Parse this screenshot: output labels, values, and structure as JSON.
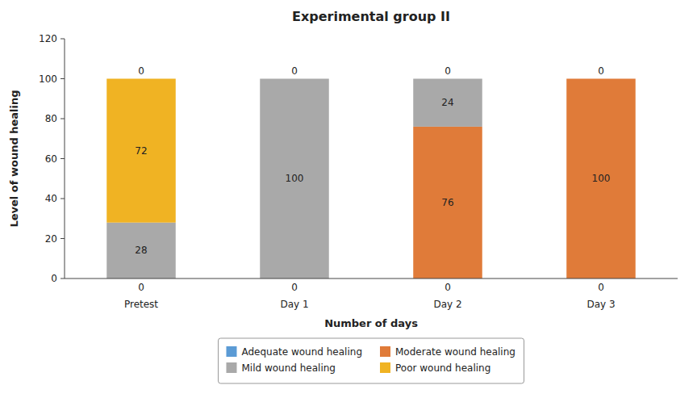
{
  "chart_data": {
    "type": "bar",
    "stacked": true,
    "title": "Experimental group II",
    "x_label": "Number of days",
    "y_label": "Level of wound healing",
    "categories": [
      "Pretest",
      "Day 1",
      "Day 2",
      "Day 3"
    ],
    "series": [
      {
        "name": "Adequate wound healing",
        "color": "#5B9BD5",
        "values": [
          0,
          0,
          0,
          0
        ],
        "value_labels": [
          "0",
          "0",
          "0",
          "0"
        ]
      },
      {
        "name": "Moderate wound healing",
        "color": "#E07B39",
        "values": [
          0,
          0,
          76,
          100
        ],
        "value_labels": [
          null,
          null,
          "76",
          "100"
        ]
      },
      {
        "name": "Mild wound healing",
        "color": "#A9A9A9",
        "values": [
          28,
          100,
          24,
          0
        ],
        "value_labels": [
          "28",
          "100",
          "24",
          null
        ]
      },
      {
        "name": "Poor wound healing",
        "color": "#F0B323",
        "values": [
          72,
          0,
          0,
          0
        ],
        "value_labels": [
          "72",
          null,
          null,
          null
        ]
      }
    ],
    "annotations": [
      {
        "text": "0",
        "category": "Pretest"
      },
      {
        "text": "0",
        "category": "Day 1"
      },
      {
        "text": "0",
        "category": "Day 2"
      },
      {
        "text": "0",
        "category": "Day 3"
      }
    ],
    "ylim": [
      0,
      120
    ],
    "yticks": [
      0,
      20,
      40,
      60,
      80,
      100,
      120
    ],
    "grid": false,
    "data_labels": true,
    "legend": "bottom"
  }
}
